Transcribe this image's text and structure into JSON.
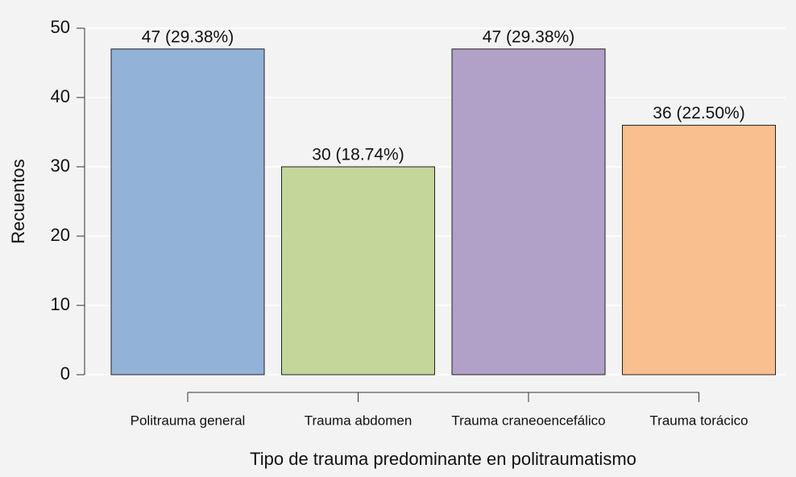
{
  "chart_data": {
    "type": "bar",
    "categories": [
      "Politrauma general",
      "Trauma abdomen",
      "Trauma craneoencefálico",
      "Trauma torácico"
    ],
    "values": [
      47,
      30,
      47,
      36
    ],
    "value_labels": [
      "47 (29.38%)",
      "30 (18.74%)",
      "47 (29.38%)",
      "36 (22.50%)"
    ],
    "colors": [
      "#92b2d7",
      "#c5d69a",
      "#b1a0c8",
      "#f9bf8f"
    ],
    "y_label": "Recuentos",
    "x_label": "Tipo de trauma predominante en politraumatismo",
    "ylim": [
      0,
      50
    ],
    "yticks": [
      0,
      10,
      20,
      30,
      40,
      50
    ],
    "grid": true
  }
}
